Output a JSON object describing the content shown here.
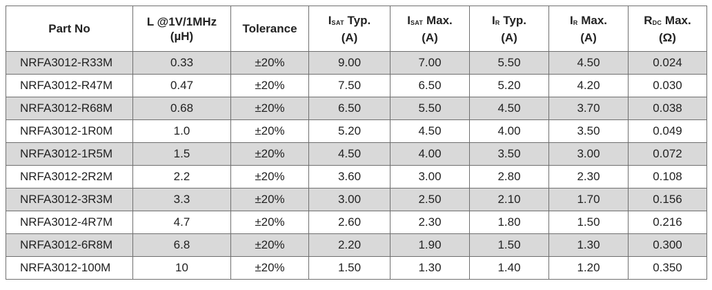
{
  "table": {
    "headers": [
      {
        "line1": "Part No",
        "line2": ""
      },
      {
        "line1": "L @1V/1MHz",
        "line2": "(µH)"
      },
      {
        "line1": "Tolerance",
        "line2": ""
      },
      {
        "sym": "I",
        "sub": "SAT",
        "rest": "Typ.",
        "line2": "(A)"
      },
      {
        "sym": "I",
        "sub": "SAT",
        "rest": "Max.",
        "line2": "(A)"
      },
      {
        "sym": "I",
        "sub": "R",
        "rest": "Typ.",
        "line2": "(A)"
      },
      {
        "sym": "I",
        "sub": "R",
        "rest": "Max.",
        "line2": "(A)"
      },
      {
        "sym": "R",
        "sub": "DC",
        "rest": "Max.",
        "line2": "(Ω)"
      }
    ],
    "rows": [
      [
        "NRFA3012-R33M",
        "0.33",
        "±20%",
        "9.00",
        "7.00",
        "5.50",
        "4.50",
        "0.024"
      ],
      [
        "NRFA3012-R47M",
        "0.47",
        "±20%",
        "7.50",
        "6.50",
        "5.20",
        "4.20",
        "0.030"
      ],
      [
        "NRFA3012-R68M",
        "0.68",
        "±20%",
        "6.50",
        "5.50",
        "4.50",
        "3.70",
        "0.038"
      ],
      [
        "NRFA3012-1R0M",
        "1.0",
        "±20%",
        "5.20",
        "4.50",
        "4.00",
        "3.50",
        "0.049"
      ],
      [
        "NRFA3012-1R5M",
        "1.5",
        "±20%",
        "4.50",
        "4.00",
        "3.50",
        "3.00",
        "0.072"
      ],
      [
        "NRFA3012-2R2M",
        "2.2",
        "±20%",
        "3.60",
        "3.00",
        "2.80",
        "2.30",
        "0.108"
      ],
      [
        "NRFA3012-3R3M",
        "3.3",
        "±20%",
        "3.00",
        "2.50",
        "2.10",
        "1.70",
        "0.156"
      ],
      [
        "NRFA3012-4R7M",
        "4.7",
        "±20%",
        "2.60",
        "2.30",
        "1.80",
        "1.50",
        "0.216"
      ],
      [
        "NRFA3012-6R8M",
        "6.8",
        "±20%",
        "2.20",
        "1.90",
        "1.50",
        "1.30",
        "0.300"
      ],
      [
        "NRFA3012-100M",
        "10",
        "±20%",
        "1.50",
        "1.30",
        "1.40",
        "1.20",
        "0.350"
      ]
    ]
  }
}
